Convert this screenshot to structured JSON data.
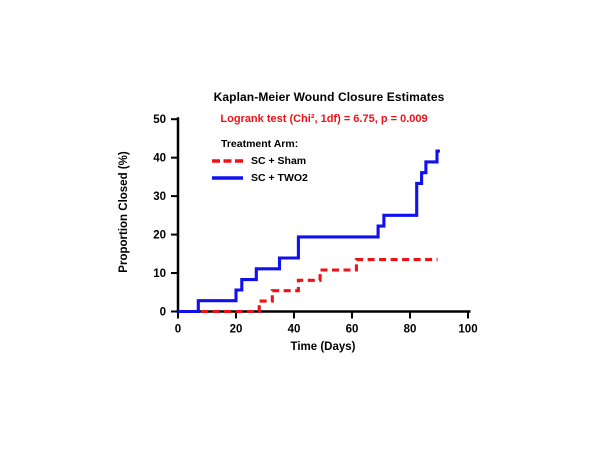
{
  "chart": {
    "title": "Kaplan-Meier Wound Closure Estimates",
    "annotation": "Logrank test (Chi², 1df) = 6.75, p = 0.009",
    "annotation_color": "#ee1217",
    "legend_title": "Treatment Arm:",
    "x_label": "Time (Days)",
    "y_label": "Proportion Closed (%)"
  },
  "chart_data": {
    "type": "line",
    "subtype": "kaplan-meier-step",
    "title": "Kaplan-Meier Wound Closure Estimates",
    "annotation": "Logrank test (Chi², 1df) = 6.75, p = 0.009",
    "xlabel": "Time (Days)",
    "ylabel": "Proportion Closed (%)",
    "xlim": [
      0,
      100
    ],
    "ylim": [
      0,
      50
    ],
    "x_ticks": [
      0,
      20,
      40,
      60,
      80,
      100
    ],
    "y_ticks": [
      0,
      10,
      20,
      30,
      40,
      50
    ],
    "grid": false,
    "legend_title": "Treatment Arm:",
    "legend_position": "upper-left-inside",
    "series": [
      {
        "name": "SC + Sham",
        "color": "#ee1217",
        "style": "dashed",
        "final_value_pct": 13.5,
        "points": [
          [
            0,
            0
          ],
          [
            28,
            0
          ],
          [
            28,
            2.7
          ],
          [
            32.5,
            2.7
          ],
          [
            32.5,
            5.4
          ],
          [
            41.5,
            5.4
          ],
          [
            41.5,
            8.1
          ],
          [
            49,
            8.1
          ],
          [
            49,
            10.8
          ],
          [
            61.5,
            10.8
          ],
          [
            61.5,
            13.5
          ],
          [
            89.5,
            13.5
          ]
        ]
      },
      {
        "name": "SC + TWO2",
        "color": "#1111ee",
        "style": "solid",
        "final_value_pct": 41.7,
        "points": [
          [
            0,
            0
          ],
          [
            7,
            0
          ],
          [
            7,
            2.8
          ],
          [
            20,
            2.8
          ],
          [
            20,
            5.6
          ],
          [
            22,
            5.6
          ],
          [
            22,
            8.3
          ],
          [
            27,
            8.3
          ],
          [
            27,
            11.1
          ],
          [
            35,
            11.1
          ],
          [
            35,
            13.9
          ],
          [
            41.5,
            13.9
          ],
          [
            41.5,
            19.4
          ],
          [
            69,
            19.4
          ],
          [
            69,
            22.2
          ],
          [
            71,
            22.2
          ],
          [
            71,
            25.0
          ],
          [
            82.3,
            25.0
          ],
          [
            82.3,
            33.3
          ],
          [
            84,
            33.3
          ],
          [
            84,
            36.1
          ],
          [
            85.5,
            36.1
          ],
          [
            85.5,
            38.9
          ],
          [
            89.3,
            38.9
          ],
          [
            89.3,
            41.7
          ],
          [
            90.3,
            41.7
          ]
        ]
      }
    ]
  }
}
